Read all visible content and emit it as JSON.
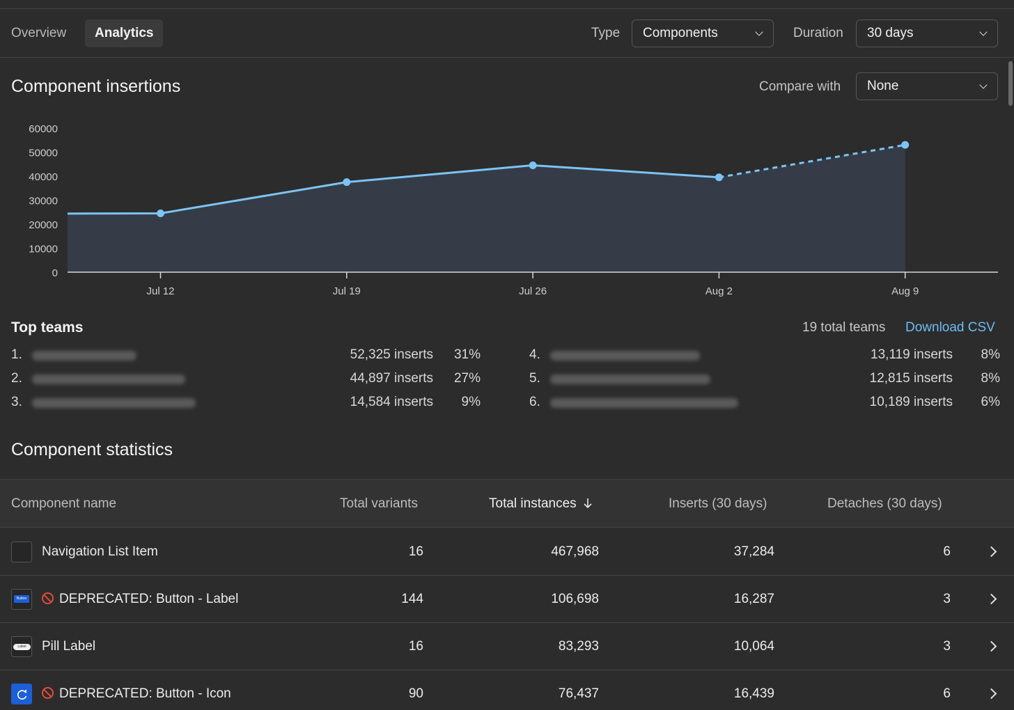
{
  "tabs": [
    {
      "label": "Overview",
      "active": false
    },
    {
      "label": "Analytics",
      "active": true
    }
  ],
  "filters": {
    "type_label": "Type",
    "type_value": "Components",
    "duration_label": "Duration",
    "duration_value": "30 days"
  },
  "insertions": {
    "title": "Component insertions",
    "compare_label": "Compare with",
    "compare_value": "None"
  },
  "chart_data": {
    "type": "area",
    "title": "Component insertions",
    "xlabel": "",
    "ylabel": "",
    "categories": [
      "Jul 12",
      "Jul 19",
      "Jul 26",
      "Aug 2",
      "Aug 9"
    ],
    "values": [
      24500,
      37500,
      44500,
      39500,
      53000
    ],
    "series_start_value": 24400,
    "projected_from_index": 3,
    "ylim": [
      0,
      60000
    ],
    "yticks": [
      0,
      10000,
      20000,
      30000,
      40000,
      50000,
      60000
    ],
    "grid": false,
    "line_color": "#7cc4f4",
    "fill_color": "#363c47"
  },
  "top_teams": {
    "title": "Top teams",
    "total": "19 total teams",
    "download": "Download CSV",
    "rows": [
      {
        "rank": "1.",
        "inserts": "52,325 inserts",
        "pct": "31%"
      },
      {
        "rank": "2.",
        "inserts": "44,897 inserts",
        "pct": "27%"
      },
      {
        "rank": "3.",
        "inserts": "14,584 inserts",
        "pct": "9%"
      },
      {
        "rank": "4.",
        "inserts": "13,119 inserts",
        "pct": "8%"
      },
      {
        "rank": "5.",
        "inserts": "12,815 inserts",
        "pct": "8%"
      },
      {
        "rank": "6.",
        "inserts": "10,189 inserts",
        "pct": "6%"
      }
    ]
  },
  "stats": {
    "title": "Component statistics",
    "columns": {
      "name": "Component name",
      "variants": "Total variants",
      "instances": "Total instances",
      "inserts": "Inserts (30 days)",
      "detaches": "Detaches (30 days)"
    },
    "sort_icon": "arrow-down-icon",
    "rows": [
      {
        "name": "Navigation List Item",
        "deprecated": false,
        "thumb": "blank",
        "thumb_text": "",
        "variants": "16",
        "instances": "467,968",
        "inserts": "37,284",
        "detaches": "6"
      },
      {
        "name": "DEPRECATED: Button - Label",
        "deprecated": true,
        "thumb": "button",
        "thumb_text": "Button",
        "variants": "144",
        "instances": "106,698",
        "inserts": "16,287",
        "detaches": "3"
      },
      {
        "name": "Pill Label",
        "deprecated": false,
        "thumb": "pill",
        "thumb_text": "Label",
        "variants": "16",
        "instances": "83,293",
        "inserts": "10,064",
        "detaches": "3"
      },
      {
        "name": "DEPRECATED: Button - Icon",
        "deprecated": true,
        "thumb": "icon",
        "thumb_text": "",
        "variants": "90",
        "instances": "76,437",
        "inserts": "16,439",
        "detaches": "6"
      }
    ]
  }
}
